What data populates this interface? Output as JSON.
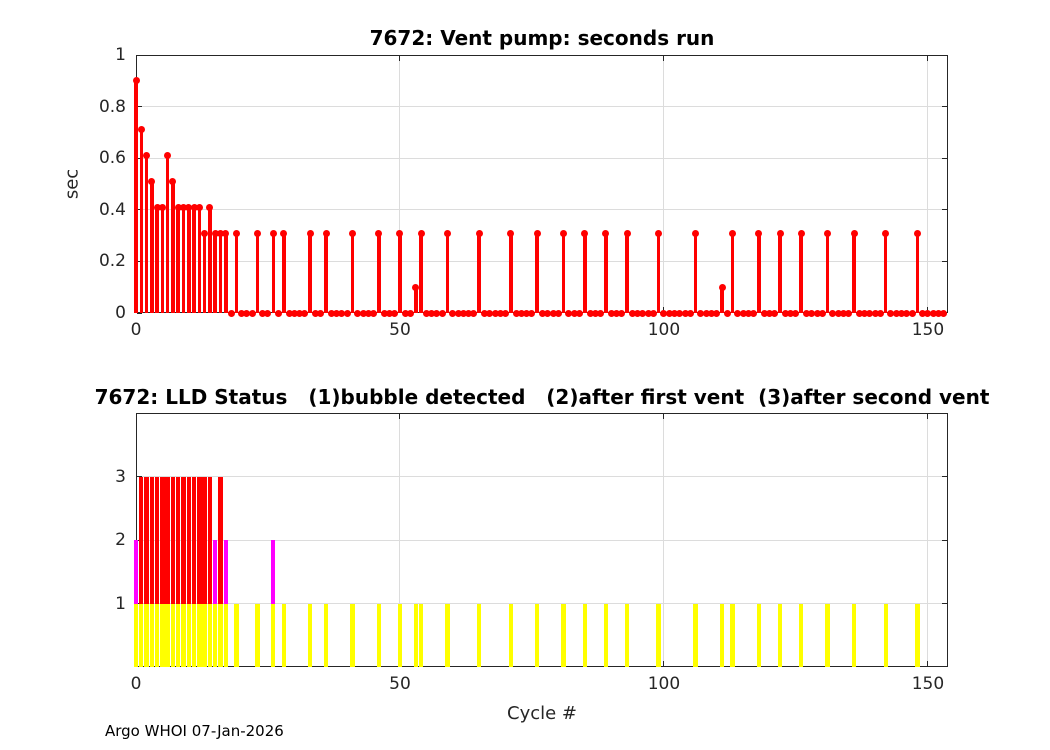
{
  "figure": {
    "footer": "Argo WHOI 07-Jan-2026",
    "xlabel": "Cycle #"
  },
  "colors": {
    "stem": "#ff0000",
    "status3_red": "#ff0000",
    "status2_magenta": "#ff00ff",
    "status1_yellow": "#ffff00",
    "grid": "#dcdcdc",
    "axis": "#262626",
    "background": "#ffffff"
  },
  "chart_data": [
    {
      "type": "stem",
      "title": "7672: Vent pump: seconds run",
      "ylabel": "sec",
      "xlabel": "",
      "xlim": [
        0,
        153.8
      ],
      "ylim": [
        0,
        1
      ],
      "xticks": [
        0,
        50,
        100,
        150
      ],
      "xticklabels": [
        "0",
        "50",
        "100",
        "150"
      ],
      "yticks": [
        0,
        0.2,
        0.4,
        0.6,
        0.8,
        1
      ],
      "yticklabels": [
        "0",
        "0.2",
        "0.4",
        "0.6",
        "0.8",
        "1"
      ],
      "grid": true,
      "series_name": "vent pump seconds run per cycle",
      "x_start": 0,
      "x_step": 1,
      "values": [
        0.9,
        0.71,
        0.61,
        0.51,
        0.41,
        0.41,
        0.61,
        0.51,
        0.41,
        0.41,
        0.41,
        0.41,
        0.41,
        0.31,
        0.41,
        0.31,
        0.31,
        0.31,
        0,
        0.31,
        0,
        0,
        0,
        0.31,
        0,
        0,
        0.31,
        0,
        0.31,
        0,
        0,
        0,
        0,
        0.31,
        0,
        0,
        0.31,
        0,
        0,
        0,
        0,
        0.31,
        0,
        0,
        0,
        0,
        0.31,
        0,
        0,
        0,
        0.31,
        0,
        0,
        0.1,
        0.31,
        0,
        0,
        0,
        0,
        0.31,
        0,
        0,
        0,
        0,
        0,
        0.31,
        0,
        0,
        0,
        0,
        0,
        0.31,
        0,
        0,
        0,
        0,
        0.31,
        0,
        0,
        0,
        0,
        0.31,
        0,
        0,
        0,
        0.31,
        0,
        0,
        0,
        0.31,
        0,
        0,
        0,
        0.31,
        0,
        0,
        0,
        0,
        0,
        0.31,
        0,
        0,
        0,
        0,
        0,
        0,
        0.31,
        0,
        0,
        0,
        0,
        0.1,
        0,
        0.31,
        0,
        0,
        0,
        0,
        0.31,
        0,
        0,
        0,
        0.31,
        0,
        0,
        0,
        0.31,
        0,
        0,
        0,
        0,
        0.31,
        0,
        0,
        0,
        0,
        0.31,
        0,
        0,
        0,
        0,
        0,
        0.31,
        0,
        0,
        0,
        0,
        0,
        0.31,
        0,
        0,
        0,
        0,
        0
      ]
    },
    {
      "type": "bar",
      "title": "7672: LLD Status   (1)bubble detected   (2)after first vent  (3)after second vent",
      "xlabel": "Cycle #",
      "xlim": [
        0,
        153.8
      ],
      "ylim": [
        0,
        4
      ],
      "xticks": [
        0,
        50,
        100,
        150
      ],
      "xticklabels": [
        "0",
        "50",
        "100",
        "150"
      ],
      "yticks": [
        1,
        2,
        3
      ],
      "yticklabels": [
        "1",
        "2",
        "3"
      ],
      "grid": true,
      "status_legend": {
        "1": "bubble detected",
        "2": "after first vent",
        "3": "after second vent"
      },
      "x_start": 0,
      "x_step": 1,
      "status": [
        2,
        3,
        3,
        3,
        3,
        3,
        3,
        3,
        3,
        3,
        3,
        3,
        3,
        3,
        3,
        2,
        3,
        2,
        0,
        1,
        0,
        0,
        0,
        1,
        0,
        0,
        2,
        0,
        1,
        0,
        0,
        0,
        0,
        1,
        0,
        0,
        1,
        0,
        0,
        0,
        0,
        1,
        0,
        0,
        0,
        0,
        1,
        0,
        0,
        0,
        1,
        0,
        0,
        1,
        1,
        0,
        0,
        0,
        0,
        1,
        0,
        0,
        0,
        0,
        0,
        1,
        0,
        0,
        0,
        0,
        0,
        1,
        0,
        0,
        0,
        0,
        1,
        0,
        0,
        0,
        0,
        1,
        0,
        0,
        0,
        1,
        0,
        0,
        0,
        1,
        0,
        0,
        0,
        1,
        0,
        0,
        0,
        0,
        0,
        1,
        0,
        0,
        0,
        0,
        0,
        0,
        1,
        0,
        0,
        0,
        0,
        1,
        0,
        1,
        0,
        0,
        0,
        0,
        1,
        0,
        0,
        0,
        1,
        0,
        0,
        0,
        1,
        0,
        0,
        0,
        0,
        1,
        0,
        0,
        0,
        0,
        1,
        0,
        0,
        0,
        0,
        0,
        1,
        0,
        0,
        0,
        0,
        0,
        1,
        0,
        0,
        0,
        0,
        0
      ]
    }
  ]
}
